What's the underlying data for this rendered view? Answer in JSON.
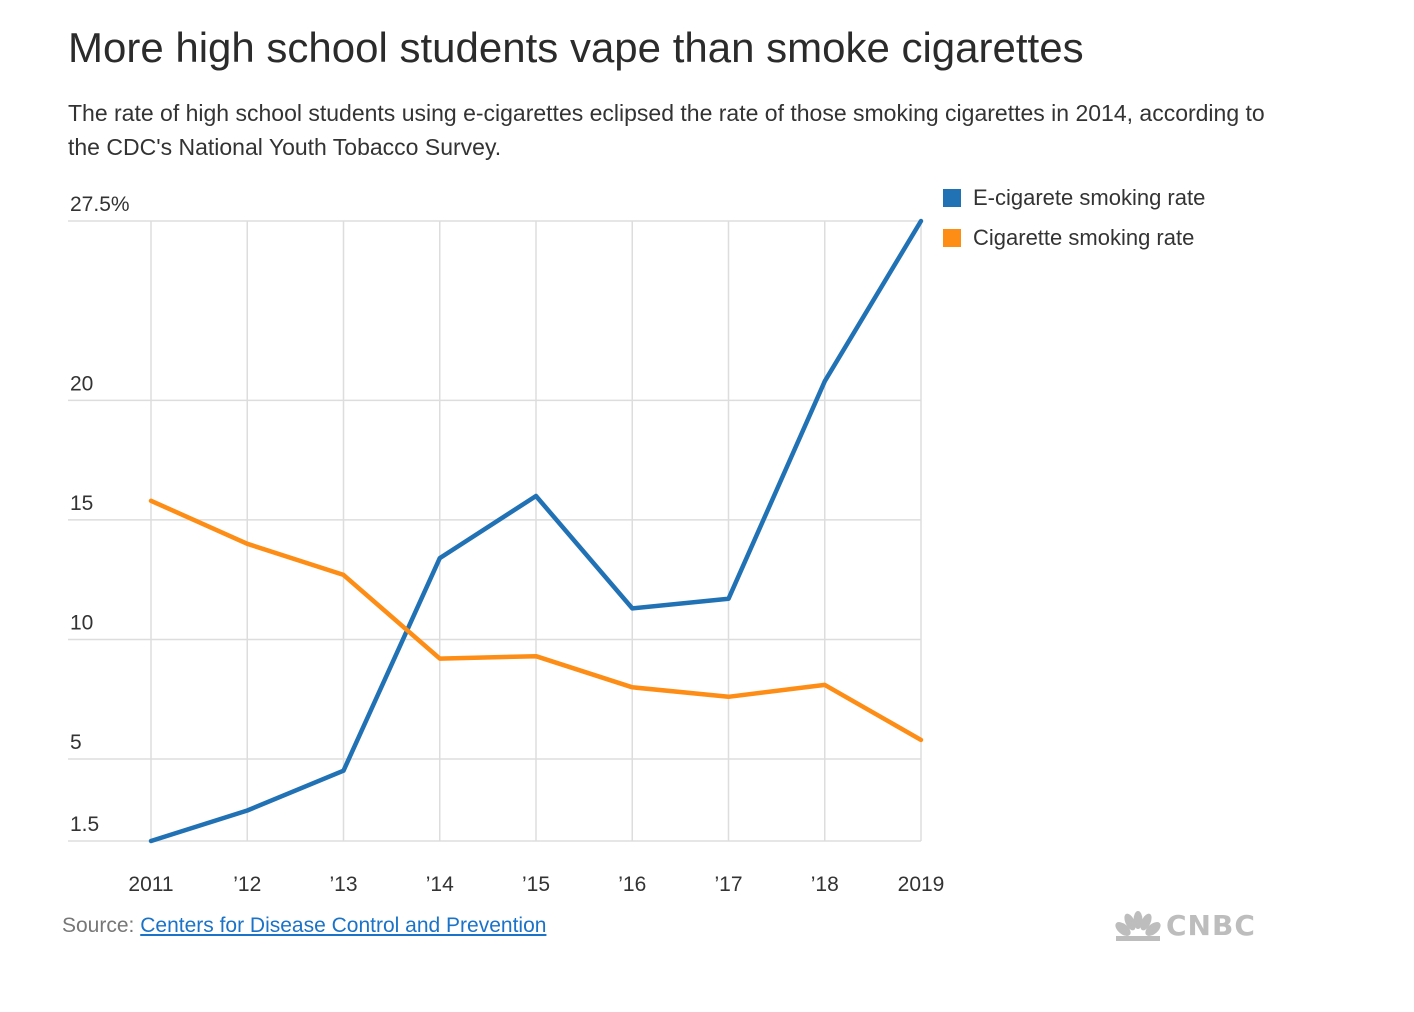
{
  "title": "More high school students vape than smoke cigarettes",
  "subtitle": "The rate of high school students using e-cigarettes eclipsed the rate of those smoking cigarettes in 2014, according to the CDC's National Youth Tobacco Survey.",
  "source": {
    "label": "Source:",
    "link_text": "Centers for Disease Control and Prevention"
  },
  "logo": {
    "text": "CNBC",
    "icon": "peacock-icon"
  },
  "colors": {
    "ecig": "#2171b5",
    "cig": "#fd8d14",
    "grid": "#dddddd"
  },
  "chart_data": {
    "type": "line",
    "categories": [
      "2011",
      "’12",
      "’13",
      "’14",
      "’15",
      "’16",
      "’17",
      "’18",
      "2019"
    ],
    "series": [
      {
        "name": "E-cigarete smoking rate",
        "values": [
          1.5,
          2.8,
          4.5,
          13.4,
          16.0,
          11.3,
          11.7,
          20.8,
          27.5
        ]
      },
      {
        "name": "Cigarette smoking rate",
        "values": [
          15.8,
          14.0,
          12.7,
          9.2,
          9.3,
          8.0,
          7.6,
          8.1,
          5.8
        ]
      }
    ],
    "y_ticks": [
      {
        "value": 1.5,
        "label": "1.5"
      },
      {
        "value": 5,
        "label": "5"
      },
      {
        "value": 10,
        "label": "10"
      },
      {
        "value": 15,
        "label": "15"
      },
      {
        "value": 20,
        "label": "20"
      },
      {
        "value": 27.5,
        "label": "27.5%"
      }
    ],
    "ylim": [
      1.5,
      27.5
    ],
    "xlabel": "",
    "ylabel": "",
    "grid": true,
    "legend_position": "top-right"
  }
}
